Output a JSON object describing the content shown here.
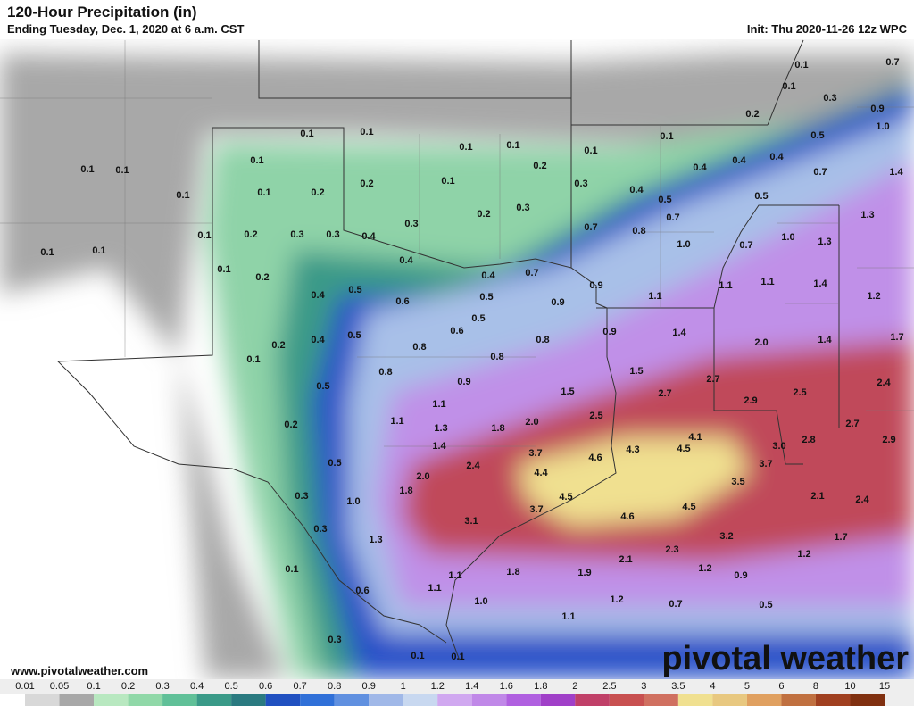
{
  "header": {
    "title": "120-Hour Precipitation (in)",
    "subtitle": "Ending Tuesday, Dec. 1, 2020 at 6 a.m. CST",
    "init": "Init: Thu 2020-11-26 12z WPC"
  },
  "map_labels": [
    "0.1",
    "0.7",
    "0.1",
    "0.3",
    "0.9",
    "0.2",
    "1.0",
    "0.1",
    "0.1",
    "0.1",
    "0.1",
    "0.1",
    "0.1",
    "0.5",
    "0.1",
    "0.1",
    "0.1",
    "0.2",
    "0.4",
    "0.4",
    "0.4",
    "0.7",
    "1.4",
    "0.1",
    "0.1",
    "0.2",
    "0.2",
    "0.1",
    "0.3",
    "0.4",
    "0.5",
    "0.5",
    "0.2",
    "0.3",
    "0.3",
    "0.7",
    "1.3",
    "0.1",
    "0.2",
    "0.3",
    "0.3",
    "0.4",
    "0.7",
    "0.8",
    "1.0",
    "0.7",
    "1.0",
    "1.3",
    "0.1",
    "0.1",
    "0.4",
    "0.7",
    "0.4",
    "0.1",
    "0.2",
    "0.5",
    "0.9",
    "1.1",
    "1.1",
    "1.4",
    "1.2",
    "0.4",
    "0.6",
    "0.5",
    "0.9",
    "1.1",
    "0.5",
    "0.6",
    "1.4",
    "0.9",
    "0.4",
    "0.5",
    "0.8",
    "0.8",
    "2.0",
    "1.4",
    "1.7",
    "0.2",
    "0.1",
    "0.8",
    "1.5",
    "0.8",
    "0.9",
    "2.7",
    "2.4",
    "0.5",
    "1.5",
    "2.7",
    "2.9",
    "2.5",
    "1.1",
    "2.5",
    "1.1",
    "1.3",
    "1.8",
    "2.0",
    "2.7",
    "0.2",
    "1.4",
    "4.1",
    "2.8",
    "2.9",
    "3.7",
    "4.6",
    "4.3",
    "4.5",
    "3.0",
    "0.5",
    "2.4",
    "3.7",
    "4.4",
    "2.0",
    "3.5",
    "1.8",
    "4.5",
    "2.1",
    "2.4",
    "0.3",
    "1.0",
    "3.7",
    "4.5",
    "4.6",
    "3.1",
    "0.3",
    "1.3",
    "3.2",
    "1.7",
    "2.3",
    "2.1",
    "1.2",
    "0.1",
    "1.8",
    "1.9",
    "1.2",
    "0.9",
    "1.1",
    "0.6",
    "1.1",
    "1.0",
    "1.2",
    "0.7",
    "0.5",
    "1.1",
    "0.3",
    "0.1",
    "0.1"
  ],
  "legend": {
    "ticks": [
      "0.01",
      "0.05",
      "0.1",
      "0.2",
      "0.3",
      "0.4",
      "0.5",
      "0.6",
      "0.7",
      "0.8",
      "0.9",
      "1",
      "1.2",
      "1.4",
      "1.6",
      "1.8",
      "2",
      "2.5",
      "3",
      "3.5",
      "4",
      "5",
      "6",
      "8",
      "10",
      "15"
    ],
    "colors": [
      "#ffffff",
      "#d8d8d8",
      "#a8a8a8",
      "#b8e8c0",
      "#90d8a8",
      "#60c098",
      "#3a9a88",
      "#2a7a80",
      "#2050c0",
      "#3070d8",
      "#6090e0",
      "#a0b8e8",
      "#c8d8f0",
      "#d0a8f0",
      "#c088e8",
      "#b060e0",
      "#a040c8",
      "#c04068",
      "#c85050",
      "#d07060",
      "#f0e090",
      "#e8c880",
      "#e0a060",
      "#c07040",
      "#a04020",
      "#803010"
    ]
  },
  "footer": {
    "website": "www.pivotalweather.com",
    "logo": "pivotal weather"
  }
}
